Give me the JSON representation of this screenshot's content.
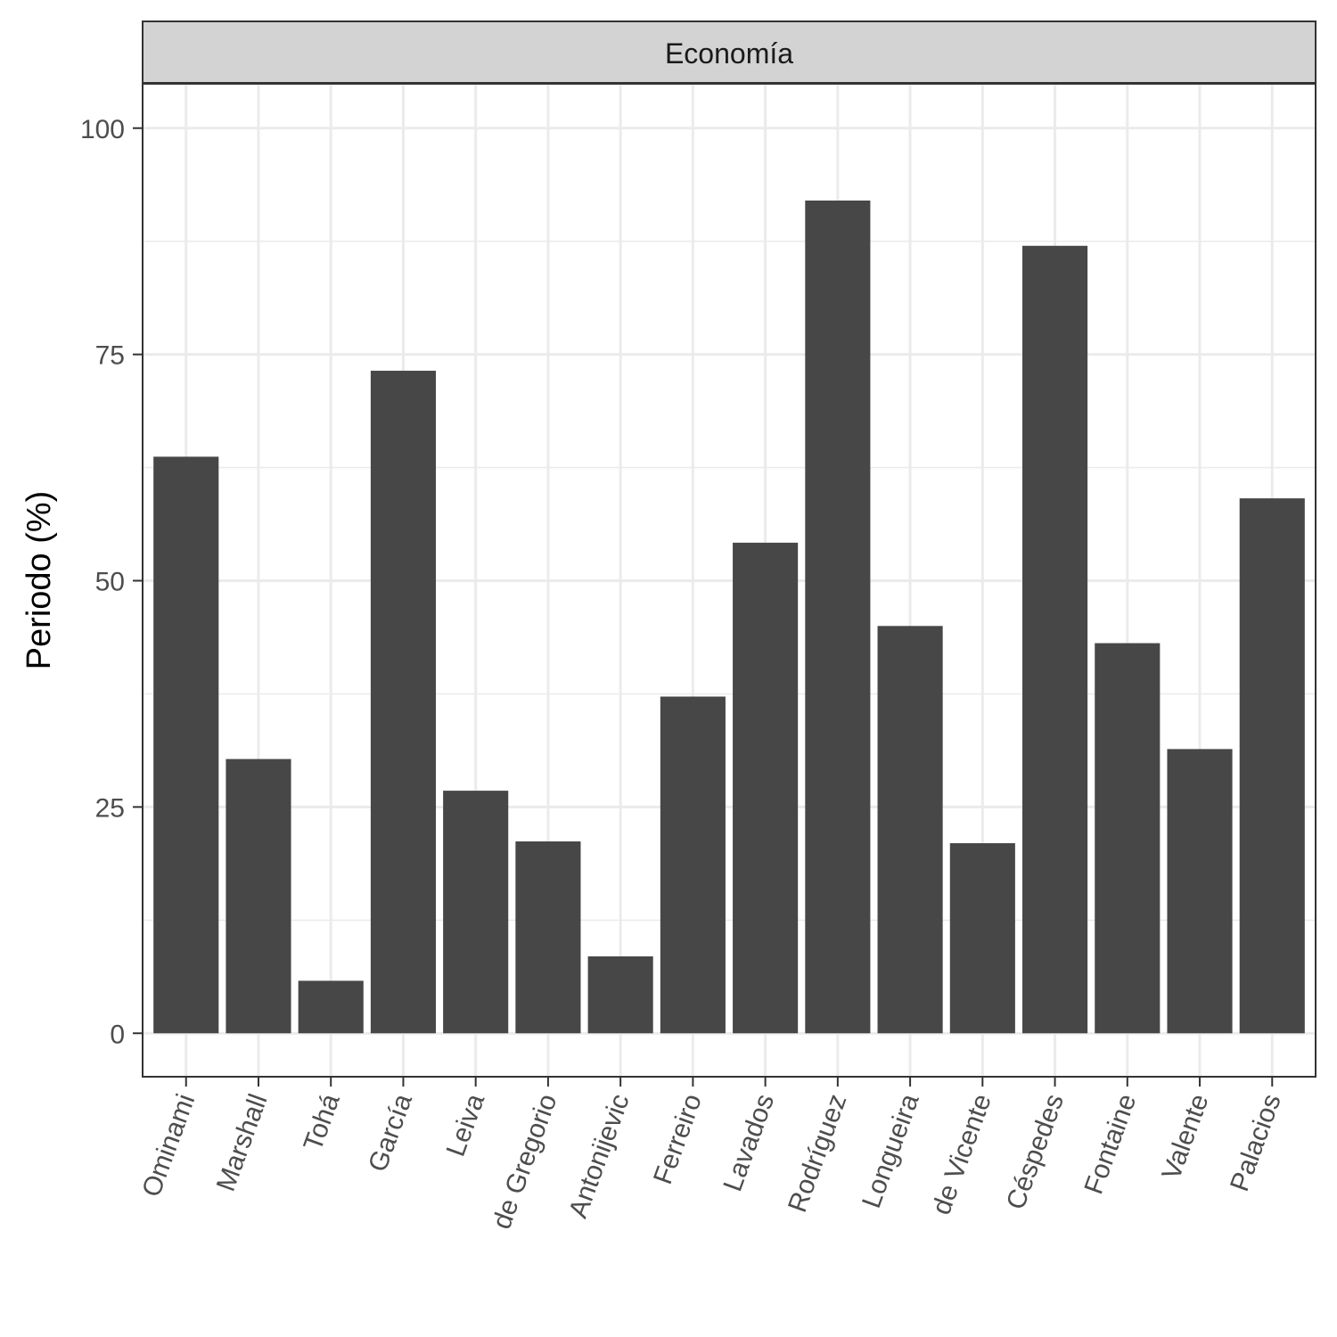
{
  "chart_data": {
    "type": "bar",
    "facet": "Economía",
    "xlabel": "",
    "ylabel": "Periodo (%)",
    "categories": [
      "Ominami",
      "Marshall",
      "Tohá",
      "García",
      "Leiva",
      "de Gregorio",
      "Antonijevic",
      "Ferreiro",
      "Lavados",
      "Rodríguez",
      "Longueira",
      "de Vicente",
      "Céspedes",
      "Fontaine",
      "Valente",
      "Palacios"
    ],
    "values": [
      63.7,
      30.3,
      5.8,
      73.2,
      26.8,
      21.2,
      8.5,
      37.2,
      54.2,
      92,
      45,
      21,
      87,
      43.1,
      31.4,
      59.1
    ],
    "ylim": [
      -4.8,
      104.9
    ],
    "yticks": [
      0,
      25,
      50,
      75,
      100
    ],
    "grid": true,
    "legend": "none",
    "colors": {
      "bar": "#474747",
      "panel_background": "#ffffff",
      "grid": "#ebebeb",
      "strip_fill": "#d3d3d3",
      "border": "#333333"
    }
  }
}
